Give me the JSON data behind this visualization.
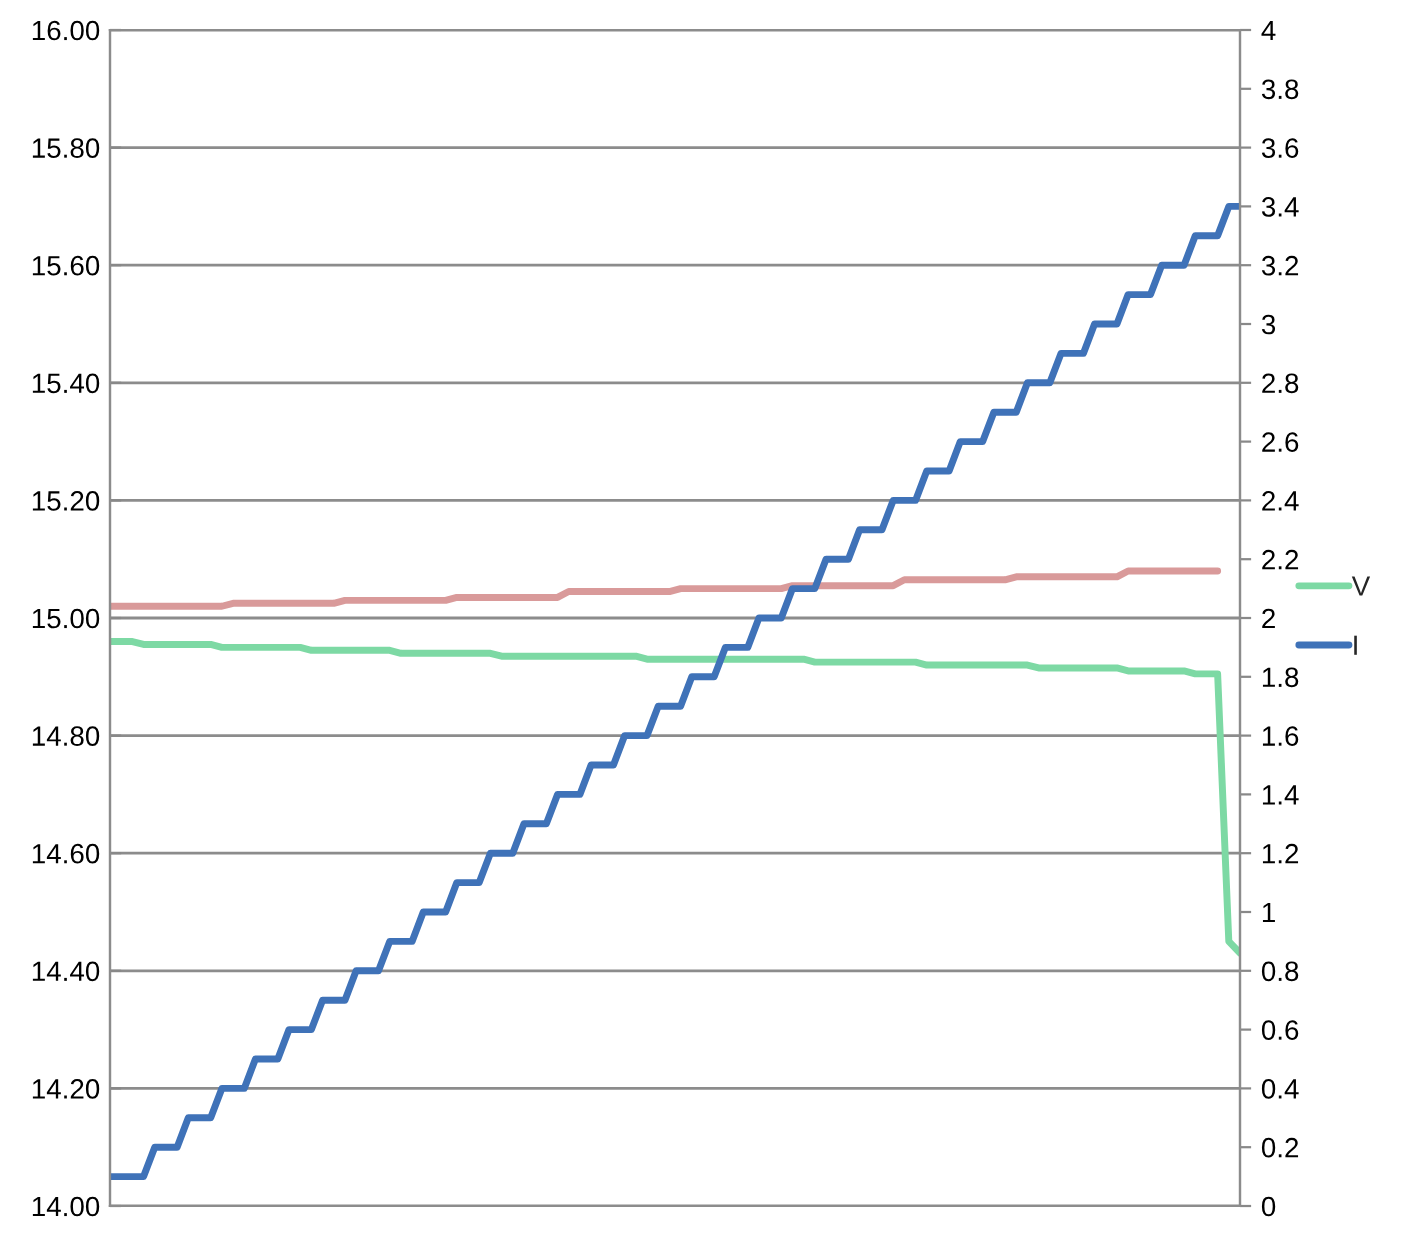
{
  "chart_data": {
    "type": "line",
    "categories": [
      null,
      null,
      null,
      null,
      null,
      null,
      null,
      null,
      null,
      null,
      null,
      null,
      null,
      null,
      null,
      null,
      null,
      null,
      null,
      null,
      null,
      null,
      null,
      null,
      null,
      null,
      null,
      null,
      null,
      null,
      null,
      null,
      null,
      null,
      null,
      null,
      null,
      null,
      null,
      null,
      null,
      null,
      null,
      null,
      null,
      null,
      null,
      null,
      null,
      null,
      null,
      null,
      null,
      null,
      null,
      null,
      null,
      null,
      null,
      null,
      null,
      null,
      null,
      null,
      null,
      null,
      null,
      null,
      null,
      null,
      null,
      null,
      null,
      null,
      null,
      null,
      null,
      null,
      null,
      null,
      null,
      null,
      null,
      null,
      null,
      null,
      null,
      null,
      null,
      null,
      null,
      null,
      null,
      null,
      null,
      null,
      null,
      null,
      null,
      null,
      null,
      null
    ],
    "tick_labels": "y",
    "ylim": [
      14.0,
      16.0
    ],
    "yticks": [
      {
        "value": 14.0,
        "label": "14.00"
      },
      {
        "value": 14.2,
        "label": "14.20"
      },
      {
        "value": 14.4,
        "label": "14.40"
      },
      {
        "value": 14.6,
        "label": "14.60"
      },
      {
        "value": 14.8,
        "label": "14.80"
      },
      {
        "value": 15.0,
        "label": "15.00"
      },
      {
        "value": 15.2,
        "label": "15.20"
      },
      {
        "value": 15.4,
        "label": "15.40"
      },
      {
        "value": 15.6,
        "label": "15.60"
      },
      {
        "value": 15.8,
        "label": "15.80"
      },
      {
        "value": 16.0,
        "label": "16.00"
      }
    ],
    "y2lim": [
      0,
      4
    ],
    "y2ticks": [
      0,
      0.2,
      0.4,
      0.6,
      0.8,
      1,
      1.2,
      1.4,
      1.6,
      1.8,
      2,
      2.2,
      2.4,
      2.6,
      2.8,
      3,
      3.2,
      3.4,
      3.6,
      3.8,
      4
    ],
    "grid": "y",
    "legend": "right",
    "series": [
      {
        "name": "V",
        "color": "#7dd9a4",
        "values": [
          14.96,
          14.96,
          14.96,
          14.955,
          14.955,
          14.955,
          14.955,
          14.955,
          14.955,
          14.955,
          14.95,
          14.95,
          14.95,
          14.95,
          14.95,
          14.95,
          14.95,
          14.95,
          14.945,
          14.945,
          14.945,
          14.945,
          14.945,
          14.945,
          14.945,
          14.945,
          14.94,
          14.94,
          14.94,
          14.94,
          14.94,
          14.94,
          14.94,
          14.94,
          14.94,
          14.935,
          14.935,
          14.935,
          14.935,
          14.935,
          14.935,
          14.935,
          14.935,
          14.935,
          14.935,
          14.935,
          14.935,
          14.935,
          14.93,
          14.93,
          14.93,
          14.93,
          14.93,
          14.93,
          14.93,
          14.93,
          14.93,
          14.93,
          14.93,
          14.93,
          14.93,
          14.93,
          14.93,
          14.925,
          14.925,
          14.925,
          14.925,
          14.925,
          14.925,
          14.925,
          14.925,
          14.925,
          14.925,
          14.92,
          14.92,
          14.92,
          14.92,
          14.92,
          14.92,
          14.92,
          14.92,
          14.92,
          14.92,
          14.915,
          14.915,
          14.915,
          14.915,
          14.915,
          14.915,
          14.915,
          14.915,
          14.91,
          14.91,
          14.91,
          14.91,
          14.91,
          14.91,
          14.905,
          14.905,
          14.905,
          14.45,
          14.43
        ]
      },
      {
        "name": "I",
        "axis": "y2",
        "color": "#3f72b8",
        "values": [
          0.1,
          0.1,
          0.1,
          0.1,
          0.2,
          0.2,
          0.2,
          0.3,
          0.3,
          0.3,
          0.4,
          0.4,
          0.4,
          0.5,
          0.5,
          0.5,
          0.6,
          0.6,
          0.6,
          0.7,
          0.7,
          0.7,
          0.8,
          0.8,
          0.8,
          0.9,
          0.9,
          0.9,
          1.0,
          1.0,
          1.0,
          1.1,
          1.1,
          1.1,
          1.2,
          1.2,
          1.2,
          1.3,
          1.3,
          1.3,
          1.4,
          1.4,
          1.4,
          1.5,
          1.5,
          1.5,
          1.6,
          1.6,
          1.6,
          1.7,
          1.7,
          1.7,
          1.8,
          1.8,
          1.8,
          1.9,
          1.9,
          1.9,
          2.0,
          2.0,
          2.0,
          2.1,
          2.1,
          2.1,
          2.2,
          2.2,
          2.2,
          2.3,
          2.3,
          2.3,
          2.4,
          2.4,
          2.4,
          2.5,
          2.5,
          2.5,
          2.6,
          2.6,
          2.6,
          2.7,
          2.7,
          2.7,
          2.8,
          2.8,
          2.8,
          2.9,
          2.9,
          2.9,
          3.0,
          3.0,
          3.0,
          3.1,
          3.1,
          3.1,
          3.2,
          3.2,
          3.2,
          3.3,
          3.3,
          3.3,
          3.4,
          3.4
        ]
      },
      {
        "color": "#d99a9a",
        "values": [
          15.02,
          15.02,
          15.02,
          15.02,
          15.02,
          15.02,
          15.02,
          15.02,
          15.02,
          15.02,
          15.02,
          15.025,
          15.025,
          15.025,
          15.025,
          15.025,
          15.025,
          15.025,
          15.025,
          15.025,
          15.025,
          15.03,
          15.03,
          15.03,
          15.03,
          15.03,
          15.03,
          15.03,
          15.03,
          15.03,
          15.03,
          15.035,
          15.035,
          15.035,
          15.035,
          15.035,
          15.035,
          15.035,
          15.035,
          15.035,
          15.035,
          15.045,
          15.045,
          15.045,
          15.045,
          15.045,
          15.045,
          15.045,
          15.045,
          15.045,
          15.045,
          15.05,
          15.05,
          15.05,
          15.05,
          15.05,
          15.05,
          15.05,
          15.05,
          15.05,
          15.05,
          15.055,
          15.055,
          15.055,
          15.055,
          15.055,
          15.055,
          15.055,
          15.055,
          15.055,
          15.055,
          15.065,
          15.065,
          15.065,
          15.065,
          15.065,
          15.065,
          15.065,
          15.065,
          15.065,
          15.065,
          15.07,
          15.07,
          15.07,
          15.07,
          15.07,
          15.07,
          15.07,
          15.07,
          15.07,
          15.07,
          15.08,
          15.08,
          15.08,
          15.08,
          15.08,
          15.08,
          15.08,
          15.08,
          15.08,
          null,
          null
        ]
      }
    ]
  }
}
